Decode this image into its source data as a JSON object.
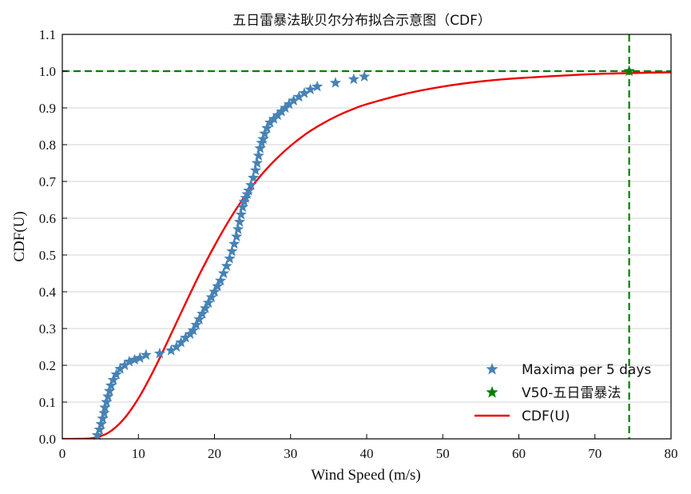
{
  "chart_data": {
    "type": "scatter",
    "title": "五日雷暴法耿贝尔分布拟合示意图（CDF）",
    "xlabel": "Wind Speed (m/s)",
    "ylabel": "CDF(U)",
    "xlim": [
      0,
      80
    ],
    "ylim": [
      0,
      1.1
    ],
    "xticks": [
      0,
      10,
      20,
      30,
      40,
      50,
      60,
      70,
      80
    ],
    "yticks": [
      0.0,
      0.1,
      0.2,
      0.3,
      0.4,
      0.5,
      0.6,
      0.7,
      0.8,
      0.9,
      1.0,
      1.1
    ],
    "grid": "horizontal",
    "legend_position": "lower-right",
    "colors": {
      "maxima": "#4682b4",
      "v50": "#008000",
      "cdf": "#ee0000"
    },
    "series": [
      {
        "name": "Maxima per 5 days",
        "kind": "scatter",
        "marker": "star",
        "x": [
          4.6,
          4.9,
          5.1,
          5.3,
          5.5,
          5.6,
          5.8,
          6.0,
          6.2,
          6.4,
          6.7,
          7.1,
          7.6,
          8.2,
          8.8,
          9.5,
          10.2,
          11.0,
          12.8,
          14.3,
          15.0,
          15.6,
          16.2,
          16.8,
          17.2,
          17.6,
          18.0,
          18.4,
          18.8,
          19.2,
          19.6,
          20.0,
          20.4,
          20.8,
          21.2,
          21.6,
          22.0,
          22.3,
          22.6,
          22.9,
          23.1,
          23.3,
          23.5,
          23.7,
          23.9,
          24.1,
          24.3,
          24.5,
          24.8,
          25.1,
          25.4,
          25.6,
          25.8,
          26.0,
          26.2,
          26.4,
          26.6,
          26.9,
          27.3,
          27.8,
          28.3,
          28.8,
          29.3,
          29.8,
          30.4,
          31.1,
          31.8,
          32.6,
          33.5,
          35.9,
          38.3,
          39.7
        ],
        "y": [
          0.01,
          0.025,
          0.04,
          0.055,
          0.07,
          0.085,
          0.1,
          0.115,
          0.13,
          0.145,
          0.16,
          0.175,
          0.19,
          0.2,
          0.21,
          0.215,
          0.22,
          0.228,
          0.232,
          0.24,
          0.25,
          0.262,
          0.275,
          0.285,
          0.295,
          0.31,
          0.325,
          0.34,
          0.355,
          0.37,
          0.385,
          0.4,
          0.415,
          0.43,
          0.45,
          0.47,
          0.49,
          0.51,
          0.53,
          0.55,
          0.57,
          0.59,
          0.61,
          0.63,
          0.645,
          0.655,
          0.665,
          0.675,
          0.69,
          0.71,
          0.73,
          0.75,
          0.77,
          0.79,
          0.805,
          0.815,
          0.83,
          0.845,
          0.86,
          0.87,
          0.88,
          0.89,
          0.9,
          0.91,
          0.92,
          0.93,
          0.94,
          0.95,
          0.958,
          0.968,
          0.978,
          0.985
        ]
      },
      {
        "name": "V50-五日雷暴法",
        "kind": "scatter",
        "marker": "star",
        "x": [
          74.5
        ],
        "y": [
          1.0
        ]
      },
      {
        "name": "CDF(U)",
        "kind": "line",
        "x": [
          0.0,
          2.0,
          4.0,
          6.0,
          8.0,
          10.0,
          12.0,
          14.0,
          16.0,
          18.0,
          20.0,
          22.0,
          24.0,
          26.0,
          28.0,
          30.0,
          32.0,
          34.0,
          36.0,
          38.0,
          40.0,
          45.0,
          50.0,
          55.0,
          60.0,
          70.0,
          80.0
        ],
        "y": [
          0.0,
          0.0,
          0.002,
          0.016,
          0.052,
          0.11,
          0.186,
          0.272,
          0.36,
          0.446,
          0.525,
          0.597,
          0.66,
          0.714,
          0.759,
          0.797,
          0.829,
          0.855,
          0.877,
          0.895,
          0.91,
          0.938,
          0.958,
          0.972,
          0.981,
          0.992,
          0.997
        ]
      }
    ],
    "reference_lines": {
      "horizontal_y": 1.0,
      "vertical_x": 74.5,
      "style": "dashed"
    }
  }
}
